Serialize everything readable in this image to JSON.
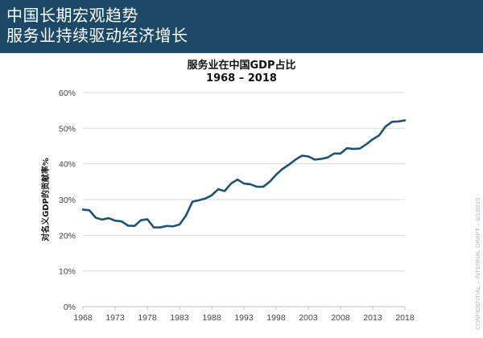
{
  "header": {
    "line1": "中国长期宏观趋势",
    "line2": "服务业持续驱动经济增长"
  },
  "side_note": "CONFIDENTIAL – INTERNAL DRAFT – 6/1/2019",
  "colors": {
    "header_bg": "#1c4a66",
    "line": "#1d5270",
    "grid": "#d9d9d9",
    "axis_text": "#444444"
  },
  "chart_data": {
    "type": "line",
    "title": "服务业在中国GDP占比",
    "subtitle": "1968 – 2018",
    "ylabel": "对名义GDP的贡献率%",
    "xlabel": "",
    "xlim": [
      1968,
      2018
    ],
    "ylim": [
      0,
      60
    ],
    "grid": true,
    "yticks": [
      {
        "v": 0,
        "label": "0%"
      },
      {
        "v": 10,
        "label": "10%"
      },
      {
        "v": 20,
        "label": "20%"
      },
      {
        "v": 30,
        "label": "30%"
      },
      {
        "v": 40,
        "label": "40%"
      },
      {
        "v": 50,
        "label": "50%"
      },
      {
        "v": 60,
        "label": "60%"
      }
    ],
    "xticks": [
      1968,
      1973,
      1978,
      1983,
      1988,
      1993,
      1998,
      2003,
      2008,
      2013,
      2018
    ],
    "series": [
      {
        "name": "",
        "x": [
          1968,
          1969,
          1970,
          1971,
          1972,
          1973,
          1974,
          1975,
          1976,
          1977,
          1978,
          1979,
          1980,
          1981,
          1982,
          1983,
          1984,
          1985,
          1986,
          1987,
          1988,
          1989,
          1990,
          1991,
          1992,
          1993,
          1994,
          1995,
          1996,
          1997,
          1998,
          1999,
          2000,
          2001,
          2002,
          2003,
          2004,
          2005,
          2006,
          2007,
          2008,
          2009,
          2010,
          2011,
          2012,
          2013,
          2014,
          2015,
          2016,
          2017,
          2018
        ],
        "y": [
          27.2,
          27.0,
          24.9,
          24.4,
          24.8,
          24.1,
          23.9,
          22.7,
          22.6,
          24.2,
          24.5,
          22.2,
          22.2,
          22.6,
          22.5,
          23.0,
          25.5,
          29.4,
          29.8,
          30.3,
          31.2,
          32.9,
          32.4,
          34.5,
          35.6,
          34.5,
          34.3,
          33.6,
          33.6,
          35.0,
          37.0,
          38.6,
          39.8,
          41.2,
          42.3,
          42.1,
          41.2,
          41.4,
          41.8,
          42.9,
          42.9,
          44.4,
          44.2,
          44.3,
          45.5,
          46.9,
          48.0,
          50.5,
          51.8,
          51.9,
          52.2
        ]
      }
    ]
  }
}
